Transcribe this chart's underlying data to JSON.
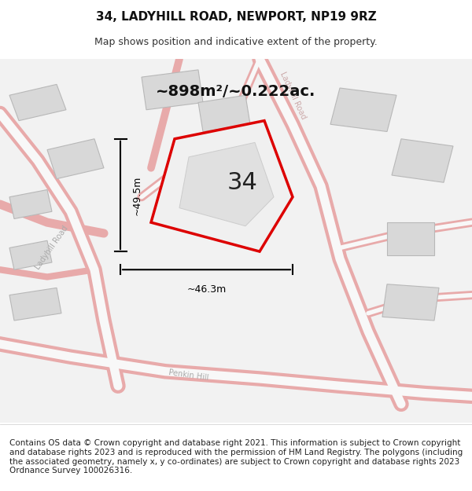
{
  "title": "34, LADYHILL ROAD, NEWPORT, NP19 9RZ",
  "subtitle": "Map shows position and indicative extent of the property.",
  "area_label": "~898m²/~0.222ac.",
  "plot_number": "34",
  "dim_vertical": "~49.5m",
  "dim_horizontal": "~46.3m",
  "road_label_left": "Ladyhill Road",
  "road_label_right": "Ladyhill Road",
  "road_label_bottom": "Penkin Hill",
  "footer_text": "Contains OS data © Crown copyright and database right 2021. This information is subject to Crown copyright and database rights 2023 and is reproduced with the permission of HM Land Registry. The polygons (including the associated geometry, namely x, y co-ordinates) are subject to Crown copyright and database rights 2023 Ordnance Survey 100026316.",
  "bg_color": "#ffffff",
  "map_bg": "#f5f5f5",
  "road_color": "#f0c0c0",
  "building_color": "#e0e0e0",
  "building_edge_color": "#c0c0c0",
  "plot_outline_color": "#dd0000",
  "annotation_color": "#000000",
  "title_fontsize": 11,
  "subtitle_fontsize": 9,
  "area_fontsize": 14,
  "plot_num_fontsize": 22,
  "footer_fontsize": 7.5
}
